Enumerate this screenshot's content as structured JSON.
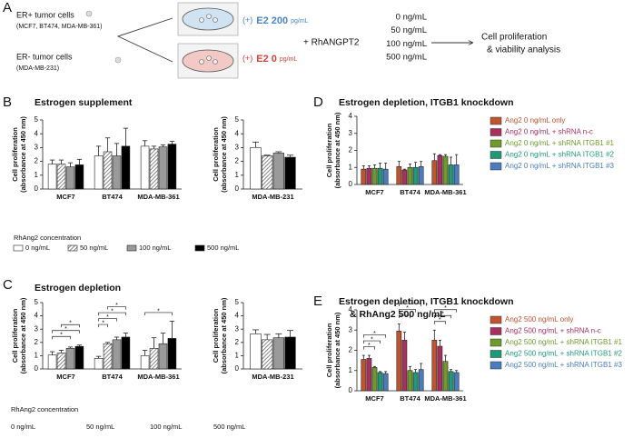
{
  "panel_a": {
    "label": "A",
    "er_pos": {
      "title": "ER+ tumor cells",
      "lines": "(MCF7, BT474, MDA-MB-361)"
    },
    "er_neg": {
      "title": "ER- tumor cells",
      "lines": "(MDA-MB-231)"
    },
    "condition_high": {
      "prefix": "(+)",
      "dose": "E2 200",
      "unit": "pg/mL"
    },
    "condition_low": {
      "prefix": "(+)",
      "dose": "E2 0",
      "unit": "pg/mL"
    },
    "treatment": "+ RhANGPT2",
    "doses": [
      "0 ng/mL",
      "50 ng/mL",
      "100 ng/mL",
      "500 ng/mL"
    ],
    "outcome": [
      "Cell proliferation",
      "& viability analysis"
    ]
  },
  "chart_data": [
    {
      "type": "bar",
      "panel_label": "B",
      "title": "Estrogen supplement",
      "ylabel": [
        "Cell proliferation",
        "(absorbance at 450 nm)"
      ],
      "categories": [
        "MCF7",
        "BT474",
        "MDA-MB-361"
      ],
      "ylim": [
        0,
        5
      ],
      "yticks": [
        0,
        1,
        2,
        3,
        4,
        5
      ],
      "legend_title": "RhAng2 concentration",
      "series": [
        {
          "name": "0 ng/mL",
          "color": "#ffffff",
          "values": [
            1.8,
            2.4,
            3.1
          ],
          "errors": [
            0.3,
            0.7,
            0.4
          ]
        },
        {
          "name": "50 ng/mL",
          "color": "#ffffff",
          "pattern": "hatch",
          "values": [
            1.8,
            2.7,
            2.9
          ],
          "errors": [
            0.3,
            1.0,
            0.2
          ]
        },
        {
          "name": "100 ng/mL",
          "color": "#9a9a9a",
          "values": [
            1.6,
            2.4,
            3.05
          ],
          "errors": [
            0.3,
            0.9,
            0.15
          ]
        },
        {
          "name": "500 ng/mL",
          "color": "#000000",
          "values": [
            1.75,
            3.1,
            3.25
          ],
          "errors": [
            0.4,
            1.3,
            0.2
          ]
        }
      ]
    },
    {
      "type": "bar",
      "ylabel": [
        "Cell proliferation",
        "(absorbance at 450 nm)"
      ],
      "categories": [
        "MDA-MB-231"
      ],
      "ylim": [
        0,
        5
      ],
      "yticks": [
        0,
        1,
        2,
        3,
        4,
        5
      ],
      "series": [
        {
          "color": "#ffffff",
          "values": [
            3.0
          ],
          "errors": [
            0.4
          ]
        },
        {
          "color": "#ffffff",
          "pattern": "hatch",
          "values": [
            2.4
          ],
          "errors": [
            0.05
          ]
        },
        {
          "color": "#9a9a9a",
          "values": [
            2.6
          ],
          "errors": [
            0.1
          ]
        },
        {
          "color": "#000000",
          "values": [
            2.3
          ],
          "errors": [
            0.15
          ]
        }
      ]
    },
    {
      "type": "bar",
      "panel_label": "C",
      "title": "Estrogen depletion",
      "ylabel": [
        "Cell proliferation",
        "(absorbance at 450 nm)"
      ],
      "categories": [
        "MCF7",
        "BT474",
        "MDA-MB-361"
      ],
      "ylim": [
        0,
        5
      ],
      "yticks": [
        0,
        1,
        2,
        3,
        4,
        5
      ],
      "legend_title": "RhAng2 concentration",
      "legend_swatches": false,
      "series": [
        {
          "name": "0 ng/mL",
          "color": "#ffffff",
          "values": [
            1.05,
            0.8,
            1.0
          ],
          "errors": [
            0.25,
            0.15,
            0.4
          ]
        },
        {
          "name": "50 ng/mL",
          "color": "#ffffff",
          "pattern": "hatch",
          "values": [
            1.2,
            1.9,
            1.55
          ],
          "errors": [
            0.2,
            0.1,
            0.8
          ]
        },
        {
          "name": "100 ng/mL",
          "color": "#9a9a9a",
          "values": [
            1.55,
            2.2,
            1.9
          ],
          "errors": [
            0.1,
            0.2,
            0.8
          ]
        },
        {
          "name": "500 ng/mL",
          "color": "#000000",
          "values": [
            1.7,
            2.4,
            2.3
          ],
          "errors": [
            0.1,
            0.3,
            1.3
          ]
        }
      ],
      "significance": [
        {
          "category": "MCF7",
          "from": "0 ng/mL",
          "to": "100 ng/mL",
          "label": "*"
        },
        {
          "category": "MCF7",
          "from": "0 ng/mL",
          "to": "500 ng/mL",
          "label": "*"
        },
        {
          "category": "MCF7",
          "from": "50 ng/mL",
          "to": "500 ng/mL",
          "label": "*"
        },
        {
          "category": "BT474",
          "from": "0 ng/mL",
          "to": "50 ng/mL",
          "label": "*"
        },
        {
          "category": "BT474",
          "from": "0 ng/mL",
          "to": "100 ng/mL",
          "label": "*"
        },
        {
          "category": "BT474",
          "from": "0 ng/mL",
          "to": "500 ng/mL",
          "label": "*"
        },
        {
          "category": "BT474",
          "from": "50 ng/mL",
          "to": "500 ng/mL",
          "label": "*"
        },
        {
          "category": "MDA-MB-361",
          "from": "0 ng/mL",
          "to": "500 ng/mL",
          "label": "*"
        }
      ]
    },
    {
      "type": "bar",
      "ylabel": [
        "Cell proliferation",
        "(absorbance at 450 nm)"
      ],
      "categories": [
        "MDA-MB-231"
      ],
      "ylim": [
        0,
        5
      ],
      "yticks": [
        0,
        1,
        2,
        3,
        4,
        5
      ],
      "series": [
        {
          "color": "#ffffff",
          "values": [
            2.65
          ],
          "errors": [
            0.3
          ]
        },
        {
          "color": "#ffffff",
          "pattern": "hatch",
          "values": [
            2.2
          ],
          "errors": [
            0.4
          ]
        },
        {
          "color": "#9a9a9a",
          "values": [
            2.35
          ],
          "errors": [
            0.3
          ]
        },
        {
          "color": "#000000",
          "values": [
            2.4
          ],
          "errors": [
            0.5
          ]
        }
      ]
    },
    {
      "type": "bar",
      "panel_label": "D",
      "title": "Estrogen depletion, ITGB1 knockdown",
      "ylabel": [
        "Cell proliferation",
        "(absorbance at 450 nm)"
      ],
      "categories": [
        "MCF7",
        "BT474",
        "MDA-MB-361"
      ],
      "ylim": [
        0,
        4
      ],
      "yticks": [
        0,
        1,
        2,
        3,
        4
      ],
      "series": [
        {
          "name": "Ang2 0 ng/mL only",
          "color": "#c0542e",
          "values": [
            0.9,
            1.05,
            1.4
          ],
          "errors": [
            0.2,
            0.3,
            0.4
          ]
        },
        {
          "name": "Ang2 0 ng/mL + shRNA n-c",
          "color": "#a8305e",
          "values": [
            0.95,
            0.85,
            1.7
          ],
          "errors": [
            0.15,
            0.05,
            0.05
          ]
        },
        {
          "name": "Ang2 0 ng/mL + shRNA ITGB1 #1",
          "color": "#6e9a2e",
          "values": [
            0.95,
            1.0,
            1.65
          ],
          "errors": [
            0.2,
            0.2,
            0.1
          ]
        },
        {
          "name": "Ang2 0 ng/mL + shRNA ITGB1 #2",
          "color": "#1e9a78",
          "values": [
            0.95,
            1.0,
            1.15
          ],
          "errors": [
            0.3,
            0.3,
            0.45
          ]
        },
        {
          "name": "Ang2 0 ng/mL + shRNA ITGB1 #3",
          "color": "#4a7cbf",
          "values": [
            0.9,
            1.05,
            1.15
          ],
          "errors": [
            0.35,
            0.3,
            0.6
          ]
        }
      ]
    },
    {
      "type": "bar",
      "panel_label": "E",
      "title": [
        "Estrogen depletion, ITGB1 knockdown",
        "& RhAng2 500 ng/mL"
      ],
      "ylabel": [
        "Cell proliferation",
        "(absorbance at 450 nm)"
      ],
      "categories": [
        "MCF7",
        "BT474",
        "MDA-MB-361"
      ],
      "ylim": [
        0,
        4
      ],
      "yticks": [
        0,
        1,
        2,
        3,
        4
      ],
      "series": [
        {
          "name": "Ang2 500 ng/mL only",
          "color": "#c0542e",
          "values": [
            1.55,
            2.95,
            2.5
          ],
          "errors": [
            0.2,
            0.35,
            0.5
          ]
        },
        {
          "name": "Ang2 500 ng/mL + shRNA n-c",
          "color": "#a8305e",
          "values": [
            1.6,
            2.5,
            2.2
          ],
          "errors": [
            0.15,
            0.4,
            0.3
          ]
        },
        {
          "name": "Ang2 500 ng/mL + shRNA ITGB1 #1",
          "color": "#6e9a2e",
          "values": [
            1.15,
            1.0,
            1.45
          ],
          "errors": [
            0.05,
            0.2,
            0.3
          ]
        },
        {
          "name": "Ang2 500 ng/mL + shRNA ITGB1 #2",
          "color": "#1e9a78",
          "values": [
            0.9,
            0.9,
            0.95
          ],
          "errors": [
            0.05,
            0.15,
            0.1
          ]
        },
        {
          "name": "Ang2 500 ng/mL + shRNA ITGB1 #3",
          "color": "#4a7cbf",
          "values": [
            0.85,
            1.05,
            0.9
          ],
          "errors": [
            0.1,
            0.3,
            0.1
          ]
        }
      ],
      "significance": [
        {
          "category": "MCF7",
          "from": "Ang2 500 ng/mL only",
          "to": "Ang2 500 ng/mL + shRNA ITGB1 #1",
          "label": "*"
        },
        {
          "category": "MCF7",
          "from": "Ang2 500 ng/mL only",
          "to": "Ang2 500 ng/mL + shRNA ITGB1 #2",
          "label": "*"
        },
        {
          "category": "MCF7",
          "from": "Ang2 500 ng/mL only",
          "to": "Ang2 500 ng/mL + shRNA ITGB1 #3",
          "label": "*"
        },
        {
          "category": "BT474",
          "from": "Ang2 500 ng/mL only",
          "to": "Ang2 500 ng/mL + shRNA ITGB1 #1",
          "label": "*"
        },
        {
          "category": "BT474",
          "from": "Ang2 500 ng/mL only",
          "to": "Ang2 500 ng/mL + shRNA ITGB1 #2",
          "label": "*"
        },
        {
          "category": "BT474",
          "from": "Ang2 500 ng/mL only",
          "to": "Ang2 500 ng/mL + shRNA ITGB1 #3",
          "label": "*"
        },
        {
          "category": "MDA-MB-361",
          "from": "Ang2 500 ng/mL only",
          "to": "Ang2 500 ng/mL + shRNA ITGB1 #1",
          "label": "*"
        },
        {
          "category": "MDA-MB-361",
          "from": "Ang2 500 ng/mL only",
          "to": "Ang2 500 ng/mL + shRNA ITGB1 #2",
          "label": "*"
        },
        {
          "category": "MDA-MB-361",
          "from": "Ang2 500 ng/mL only",
          "to": "Ang2 500 ng/mL + shRNA ITGB1 #3",
          "label": "*"
        }
      ]
    }
  ]
}
